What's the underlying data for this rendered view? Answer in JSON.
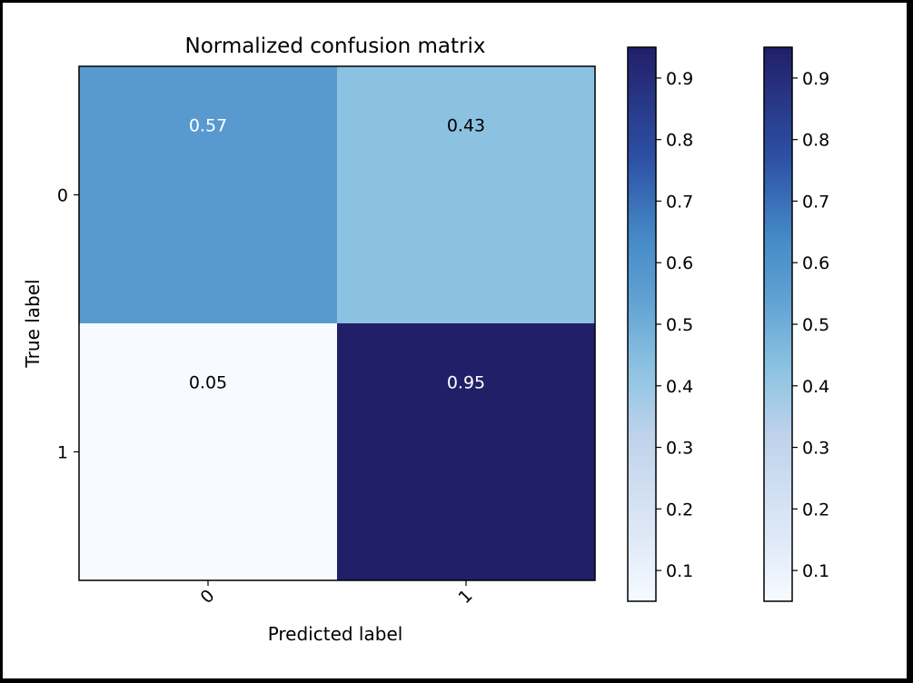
{
  "chart_data": {
    "type": "heatmap",
    "title": "Normalized confusion matrix",
    "xlabel": "Predicted label",
    "ylabel": "True label",
    "x_categories": [
      "0",
      "1"
    ],
    "y_categories": [
      "0",
      "1"
    ],
    "values": [
      [
        0.57,
        0.43
      ],
      [
        0.05,
        0.95
      ]
    ],
    "cell_labels": [
      [
        "0.57",
        "0.43"
      ],
      [
        "0.05",
        "0.95"
      ]
    ],
    "colormap": "Blues",
    "color_range": [
      0.05,
      0.95
    ],
    "x_tick_rotation": 45,
    "colorbars": [
      {
        "ticks": [
          "0.1",
          "0.2",
          "0.3",
          "0.4",
          "0.5",
          "0.6",
          "0.7",
          "0.8",
          "0.9"
        ],
        "range": [
          0.05,
          0.95
        ]
      },
      {
        "ticks": [
          "0.1",
          "0.2",
          "0.3",
          "0.4",
          "0.5",
          "0.6",
          "0.7",
          "0.8",
          "0.9"
        ],
        "range": [
          0.05,
          0.95
        ]
      }
    ]
  },
  "colors": {
    "background": "#ffffff",
    "border": "#000000",
    "text_on_dark": "#ffffff",
    "text_on_light": "#000000"
  }
}
